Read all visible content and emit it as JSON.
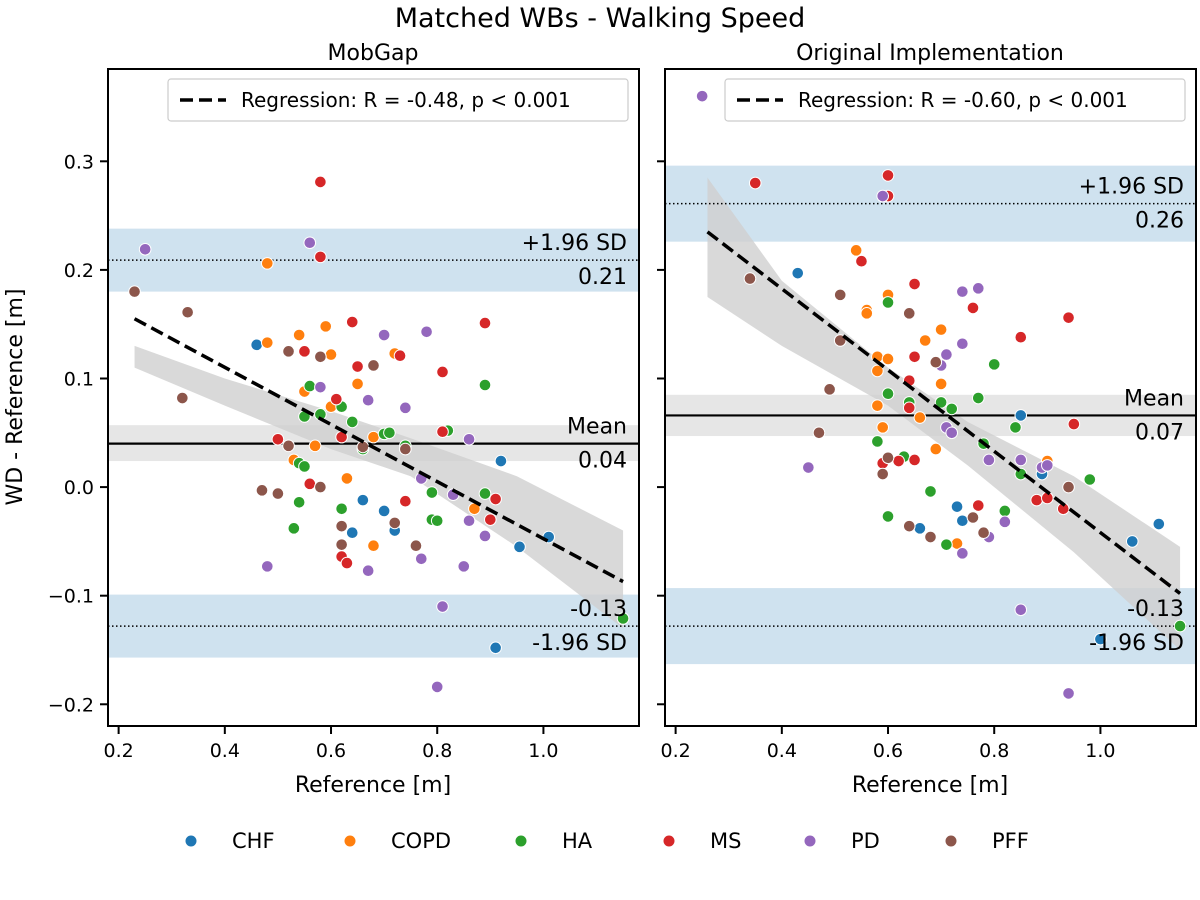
{
  "figure": {
    "title": "Matched WBs - Walking Speed"
  },
  "colors": {
    "CHF": "#1f77b4",
    "COPD": "#ff7f0e",
    "HA": "#2ca02c",
    "MS": "#d62728",
    "PD": "#9467bd",
    "PFF": "#8c564b",
    "loa_band": "#cfe2ef",
    "mean_band": "#e6e6e6",
    "ci_band": "#cfcfcf"
  },
  "legend": [
    "CHF",
    "COPD",
    "HA",
    "MS",
    "PD",
    "PFF"
  ],
  "chart_data": [
    {
      "type": "scatter",
      "title": "MobGap",
      "xlabel": "Reference [m]",
      "ylabel": "WD - Reference [m]",
      "xlim": [
        0.18,
        1.18
      ],
      "ylim": [
        -0.22,
        0.385
      ],
      "xticks": [
        0.2,
        0.4,
        0.6,
        0.8,
        1.0
      ],
      "yticks": [
        -0.2,
        -0.1,
        0.0,
        0.1,
        0.2,
        0.3
      ],
      "mean": 0.04,
      "mean_band": [
        0.024,
        0.057
      ],
      "upper_loa": 0.209,
      "upper_band": [
        0.18,
        0.238
      ],
      "lower_loa": -0.128,
      "lower_band": [
        -0.157,
        -0.099
      ],
      "labels": {
        "mean": "Mean",
        "mean_value": "0.04",
        "upper": "+1.96 SD",
        "upper_value": "0.21",
        "lower": "-1.96 SD",
        "lower_value": "-0.13"
      },
      "regression": {
        "label": "Regression: R = -0.48, p < 0.001",
        "x": [
          0.23,
          1.15
        ],
        "y": [
          0.155,
          -0.087
        ],
        "ci_upper": [
          0.13,
          0.1,
          0.07,
          0.045,
          0.01,
          -0.04
        ],
        "ci_lower": [
          0.11,
          0.075,
          0.035,
          0.01,
          -0.055,
          -0.13
        ],
        "ci_x": [
          0.23,
          0.4,
          0.6,
          0.75,
          0.95,
          1.15
        ]
      },
      "series": [
        {
          "name": "CHF",
          "points": [
            [
              0.46,
              0.131
            ],
            [
              0.66,
              -0.012
            ],
            [
              0.7,
              -0.022
            ],
            [
              0.72,
              -0.04
            ],
            [
              0.64,
              -0.042
            ],
            [
              0.79,
              -0.03
            ],
            [
              0.92,
              0.024
            ],
            [
              0.955,
              -0.055
            ],
            [
              1.01,
              -0.046
            ],
            [
              0.91,
              -0.148
            ]
          ]
        },
        {
          "name": "COPD",
          "points": [
            [
              0.48,
              0.206
            ],
            [
              0.48,
              0.133
            ],
            [
              0.54,
              0.14
            ],
            [
              0.59,
              0.148
            ],
            [
              0.6,
              0.122
            ],
            [
              0.55,
              0.088
            ],
            [
              0.57,
              0.038
            ],
            [
              0.6,
              0.074
            ],
            [
              0.65,
              0.095
            ],
            [
              0.72,
              0.123
            ],
            [
              0.68,
              0.046
            ],
            [
              0.63,
              0.008
            ],
            [
              0.53,
              0.025
            ],
            [
              0.68,
              -0.054
            ],
            [
              0.87,
              -0.02
            ]
          ]
        },
        {
          "name": "HA",
          "points": [
            [
              0.56,
              0.093
            ],
            [
              0.55,
              0.065
            ],
            [
              0.58,
              0.067
            ],
            [
              0.62,
              0.074
            ],
            [
              0.64,
              0.06
            ],
            [
              0.66,
              0.035
            ],
            [
              0.7,
              0.049
            ],
            [
              0.71,
              0.05
            ],
            [
              0.74,
              0.038
            ],
            [
              0.82,
              0.052
            ],
            [
              0.89,
              0.094
            ],
            [
              0.54,
              0.022
            ],
            [
              0.55,
              0.019
            ],
            [
              0.54,
              -0.014
            ],
            [
              0.62,
              -0.02
            ],
            [
              0.53,
              -0.038
            ],
            [
              0.79,
              -0.005
            ],
            [
              0.79,
              -0.03
            ],
            [
              0.8,
              -0.031
            ],
            [
              0.89,
              -0.006
            ],
            [
              1.15,
              -0.121
            ]
          ]
        },
        {
          "name": "MS",
          "points": [
            [
              0.58,
              0.281
            ],
            [
              0.58,
              0.212
            ],
            [
              0.55,
              0.125
            ],
            [
              0.64,
              0.152
            ],
            [
              0.65,
              0.111
            ],
            [
              0.73,
              0.121
            ],
            [
              0.61,
              0.081
            ],
            [
              0.62,
              0.046
            ],
            [
              0.5,
              0.044
            ],
            [
              0.56,
              0.003
            ],
            [
              0.62,
              -0.064
            ],
            [
              0.74,
              -0.013
            ],
            [
              0.81,
              0.106
            ],
            [
              0.81,
              0.051
            ],
            [
              0.89,
              0.151
            ],
            [
              0.9,
              -0.03
            ],
            [
              0.91,
              -0.011
            ],
            [
              0.63,
              -0.07
            ]
          ]
        },
        {
          "name": "PD",
          "points": [
            [
              0.25,
              0.219
            ],
            [
              0.56,
              0.225
            ],
            [
              0.58,
              0.092
            ],
            [
              0.67,
              0.08
            ],
            [
              0.7,
              0.14
            ],
            [
              0.78,
              0.143
            ],
            [
              0.74,
              0.073
            ],
            [
              0.77,
              0.008
            ],
            [
              0.86,
              0.044
            ],
            [
              0.83,
              -0.007
            ],
            [
              0.86,
              -0.031
            ],
            [
              0.89,
              -0.045
            ],
            [
              0.85,
              -0.073
            ],
            [
              0.77,
              -0.066
            ],
            [
              0.67,
              -0.077
            ],
            [
              0.48,
              -0.073
            ],
            [
              0.81,
              -0.11
            ],
            [
              0.8,
              -0.184
            ]
          ]
        },
        {
          "name": "PFF",
          "points": [
            [
              0.23,
              0.18
            ],
            [
              0.33,
              0.161
            ],
            [
              0.32,
              0.082
            ],
            [
              0.52,
              0.125
            ],
            [
              0.58,
              0.12
            ],
            [
              0.68,
              0.112
            ],
            [
              0.52,
              0.038
            ],
            [
              0.66,
              0.037
            ],
            [
              0.74,
              0.035
            ],
            [
              0.47,
              -0.003
            ],
            [
              0.5,
              -0.006
            ],
            [
              0.58,
              0.0
            ],
            [
              0.62,
              -0.036
            ],
            [
              0.62,
              -0.053
            ],
            [
              0.72,
              -0.033
            ],
            [
              0.76,
              -0.054
            ]
          ]
        }
      ]
    },
    {
      "type": "scatter",
      "title": "Original Implementation",
      "xlabel": "Reference [m]",
      "ylabel": "",
      "xlim": [
        0.18,
        1.18
      ],
      "ylim": [
        -0.22,
        0.385
      ],
      "xticks": [
        0.2,
        0.4,
        0.6,
        0.8,
        1.0
      ],
      "yticks": [
        -0.2,
        -0.1,
        0.0,
        0.1,
        0.2,
        0.3
      ],
      "mean": 0.066,
      "mean_band": [
        0.047,
        0.085
      ],
      "upper_loa": 0.261,
      "upper_band": [
        0.226,
        0.296
      ],
      "lower_loa": -0.128,
      "lower_band": [
        -0.163,
        -0.093
      ],
      "labels": {
        "mean": "Mean",
        "mean_value": "0.07",
        "upper": "+1.96 SD",
        "upper_value": "0.26",
        "lower": "-1.96 SD",
        "lower_value": "-0.13"
      },
      "regression": {
        "label": "Regression: R = -0.60, p < 0.001",
        "x": [
          0.26,
          1.15
        ],
        "y": [
          0.235,
          -0.098
        ],
        "ci_upper": [
          0.285,
          0.19,
          0.11,
          0.06,
          0.01,
          -0.055
        ],
        "ci_lower": [
          0.175,
          0.13,
          0.075,
          0.02,
          -0.06,
          -0.15
        ],
        "ci_x": [
          0.26,
          0.4,
          0.6,
          0.75,
          0.95,
          1.15
        ]
      },
      "series": [
        {
          "name": "CHF",
          "points": [
            [
              0.43,
              0.197
            ],
            [
              0.85,
              0.066
            ],
            [
              0.73,
              -0.018
            ],
            [
              0.74,
              -0.031
            ],
            [
              0.66,
              -0.038
            ],
            [
              0.89,
              0.012
            ],
            [
              1.06,
              -0.05
            ],
            [
              1.11,
              -0.034
            ],
            [
              1.0,
              -0.14
            ]
          ]
        },
        {
          "name": "COPD",
          "points": [
            [
              0.54,
              0.218
            ],
            [
              0.56,
              0.163
            ],
            [
              0.56,
              0.16
            ],
            [
              0.6,
              0.177
            ],
            [
              0.58,
              0.12
            ],
            [
              0.58,
              0.107
            ],
            [
              0.6,
              0.118
            ],
            [
              0.58,
              0.075
            ],
            [
              0.59,
              0.055
            ],
            [
              0.67,
              0.135
            ],
            [
              0.7,
              0.145
            ],
            [
              0.7,
              0.095
            ],
            [
              0.66,
              0.064
            ],
            [
              0.69,
              0.035
            ],
            [
              0.9,
              0.024
            ],
            [
              0.73,
              -0.052
            ]
          ]
        },
        {
          "name": "HA",
          "points": [
            [
              0.6,
              0.17
            ],
            [
              0.6,
              0.086
            ],
            [
              0.64,
              0.078
            ],
            [
              0.7,
              0.078
            ],
            [
              0.72,
              0.072
            ],
            [
              0.77,
              0.082
            ],
            [
              0.8,
              0.113
            ],
            [
              0.78,
              0.04
            ],
            [
              0.84,
              0.055
            ],
            [
              0.85,
              0.012
            ],
            [
              0.58,
              0.042
            ],
            [
              0.63,
              0.028
            ],
            [
              0.68,
              -0.004
            ],
            [
              0.6,
              -0.027
            ],
            [
              0.71,
              -0.053
            ],
            [
              0.82,
              -0.022
            ],
            [
              0.98,
              0.007
            ],
            [
              1.15,
              -0.128
            ]
          ]
        },
        {
          "name": "MS",
          "points": [
            [
              0.35,
              0.28
            ],
            [
              0.6,
              0.287
            ],
            [
              0.6,
              0.268
            ],
            [
              0.55,
              0.208
            ],
            [
              0.65,
              0.187
            ],
            [
              0.76,
              0.165
            ],
            [
              0.94,
              0.156
            ],
            [
              0.85,
              0.138
            ],
            [
              0.65,
              0.12
            ],
            [
              0.64,
              0.098
            ],
            [
              0.64,
              0.073
            ],
            [
              0.59,
              0.022
            ],
            [
              0.62,
              0.024
            ],
            [
              0.65,
              0.025
            ],
            [
              0.77,
              -0.017
            ],
            [
              0.88,
              -0.012
            ],
            [
              0.95,
              0.058
            ],
            [
              0.93,
              -0.02
            ],
            [
              0.9,
              -0.01
            ]
          ]
        },
        {
          "name": "PD",
          "points": [
            [
              0.25,
              0.36
            ],
            [
              0.59,
              0.268
            ],
            [
              0.74,
              0.18
            ],
            [
              0.77,
              0.183
            ],
            [
              0.71,
              0.122
            ],
            [
              0.74,
              0.132
            ],
            [
              0.7,
              0.112
            ],
            [
              0.71,
              0.055
            ],
            [
              0.72,
              0.05
            ],
            [
              0.79,
              0.025
            ],
            [
              0.85,
              0.025
            ],
            [
              0.89,
              0.018
            ],
            [
              0.9,
              0.02
            ],
            [
              0.45,
              0.018
            ],
            [
              0.82,
              -0.032
            ],
            [
              0.79,
              -0.046
            ],
            [
              0.74,
              -0.061
            ],
            [
              0.85,
              -0.113
            ],
            [
              0.94,
              -0.19
            ]
          ]
        },
        {
          "name": "PFF",
          "points": [
            [
              0.34,
              0.192
            ],
            [
              0.51,
              0.177
            ],
            [
              0.51,
              0.135
            ],
            [
              0.64,
              0.16
            ],
            [
              0.69,
              0.115
            ],
            [
              0.49,
              0.09
            ],
            [
              0.47,
              0.05
            ],
            [
              0.6,
              0.027
            ],
            [
              0.59,
              0.012
            ],
            [
              0.64,
              -0.036
            ],
            [
              0.68,
              -0.046
            ],
            [
              0.76,
              -0.028
            ],
            [
              0.78,
              -0.042
            ],
            [
              0.94,
              0.0
            ]
          ]
        }
      ]
    }
  ]
}
